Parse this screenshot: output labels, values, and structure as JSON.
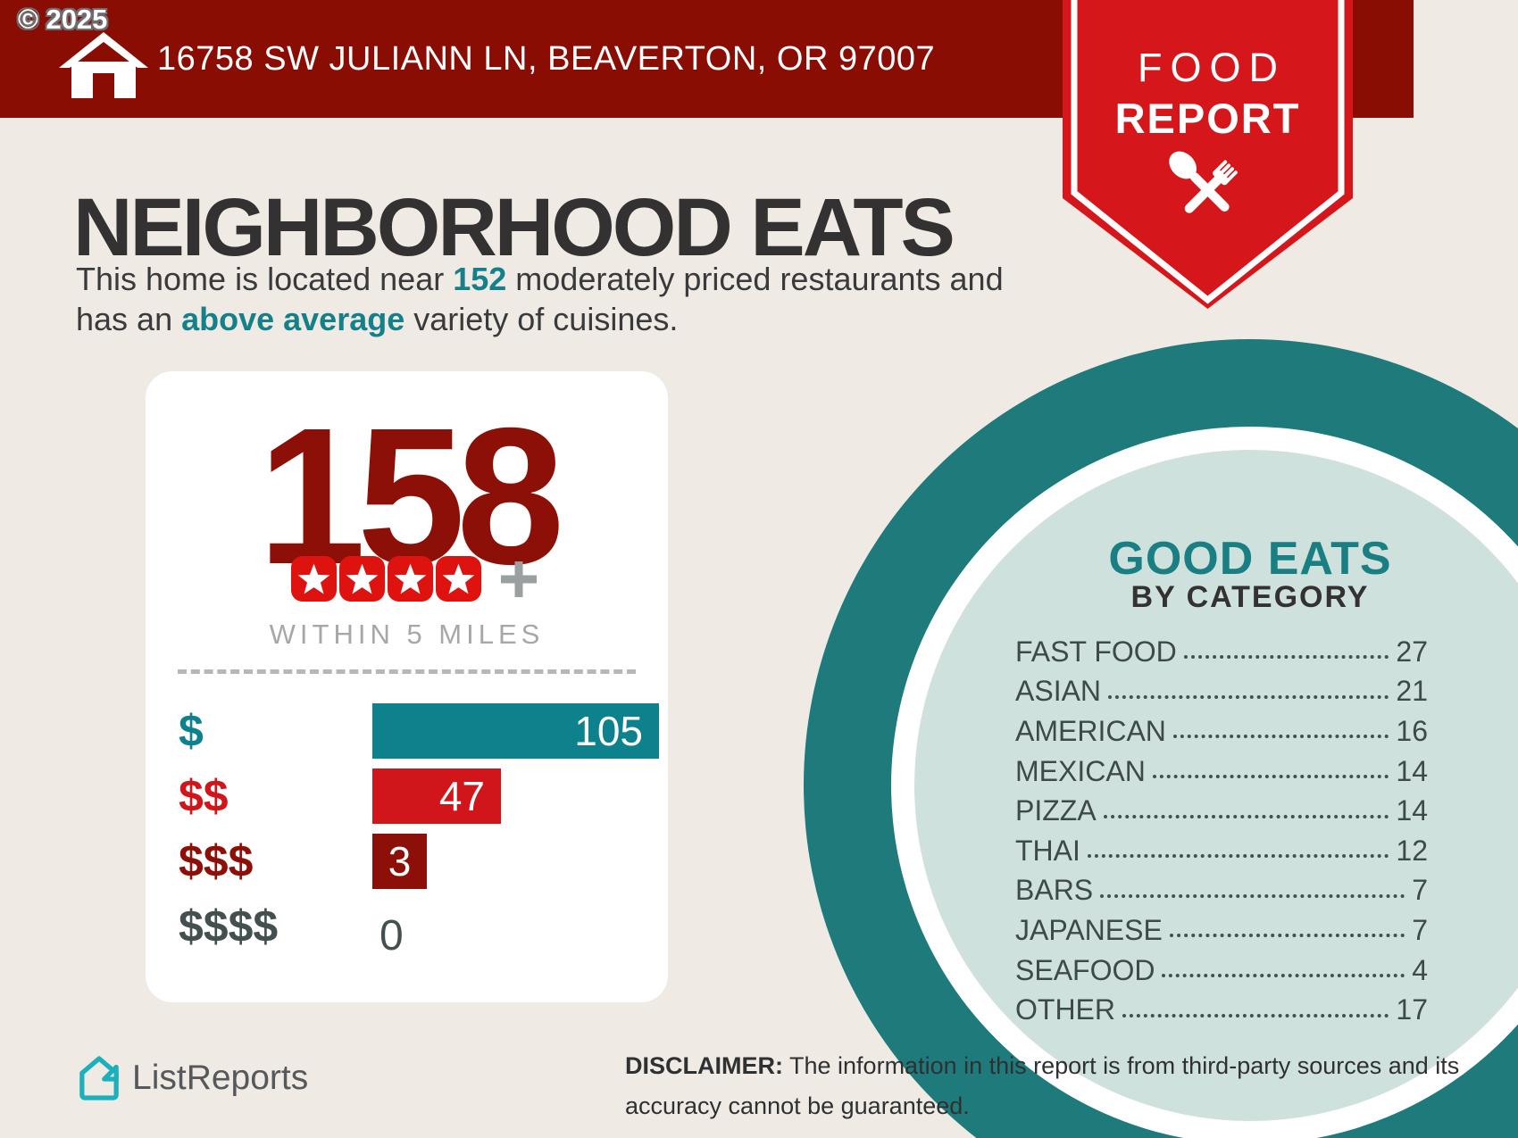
{
  "header": {
    "copyright": "© 2025",
    "address": "16758 SW JULIANN LN, BEAVERTON, OR 97007"
  },
  "badge": {
    "line1": "FOOD",
    "line2": "REPORT"
  },
  "intro": {
    "title": "NEIGHBORHOOD EATS",
    "line1_pre": "This home is located near ",
    "count": "152",
    "line1_post": " moderately priced restaurants and",
    "line2_pre": "has an ",
    "highlight": "above average",
    "line2_post": " variety of cuisines."
  },
  "stats_card": {
    "total": "158",
    "stars": 4,
    "subtitle": "WITHIN 5 MILES",
    "chart_rows": [
      {
        "label": "$",
        "value": 105,
        "color": "#0E828C"
      },
      {
        "label": "$$",
        "value": 47,
        "color": "#D0151B"
      },
      {
        "label": "$$$",
        "value": 3,
        "color": "#8C1007"
      },
      {
        "label": "$$$$",
        "value": 0,
        "color": "#44504F"
      }
    ]
  },
  "good_eats": {
    "title": "GOOD EATS",
    "subtitle": "BY CATEGORY",
    "categories": [
      {
        "label": "FAST FOOD",
        "value": 27
      },
      {
        "label": "ASIAN",
        "value": 21
      },
      {
        "label": "AMERICAN",
        "value": 16
      },
      {
        "label": "MEXICAN",
        "value": 14
      },
      {
        "label": "PIZZA",
        "value": 14
      },
      {
        "label": "THAI",
        "value": 12
      },
      {
        "label": "BARS",
        "value": 7
      },
      {
        "label": "JAPANESE",
        "value": 7
      },
      {
        "label": "SEAFOOD",
        "value": 4
      },
      {
        "label": "OTHER",
        "value": 17
      }
    ]
  },
  "footer": {
    "brand": "ListReports",
    "disclaimer_bold": "DISCLAIMER:",
    "disclaimer_rest": " The information in this report is from third-party sources and its accuracy cannot be guaranteed."
  },
  "colors": {
    "header_maroon": "#8A0D04",
    "ribbon_red": "#D5161B",
    "star_red": "#DE130F",
    "accent_teal": "#14808A",
    "ring_teal": "#1F7A7C",
    "inner_teal": "#CFE1DC",
    "dark_maroon": "#8C1007",
    "slate": "#44504F",
    "cream": "#EFEAE4",
    "logo_teal": "#1CB0BC"
  },
  "chart_data": [
    {
      "type": "bar",
      "title": "Restaurants by price tier (158 total, 4-star+, within 5 miles)",
      "categories": [
        "$",
        "$$",
        "$$$",
        "$$$$"
      ],
      "values": [
        105,
        47,
        3,
        0
      ],
      "xlabel": "",
      "ylabel": "",
      "orientation": "horizontal",
      "grid": false,
      "legend": "none"
    },
    {
      "type": "table",
      "title": "GOOD EATS BY CATEGORY",
      "categories": [
        "FAST FOOD",
        "ASIAN",
        "AMERICAN",
        "MEXICAN",
        "PIZZA",
        "THAI",
        "BARS",
        "JAPANESE",
        "SEAFOOD",
        "OTHER"
      ],
      "values": [
        27,
        21,
        16,
        14,
        14,
        12,
        7,
        7,
        4,
        17
      ]
    }
  ]
}
